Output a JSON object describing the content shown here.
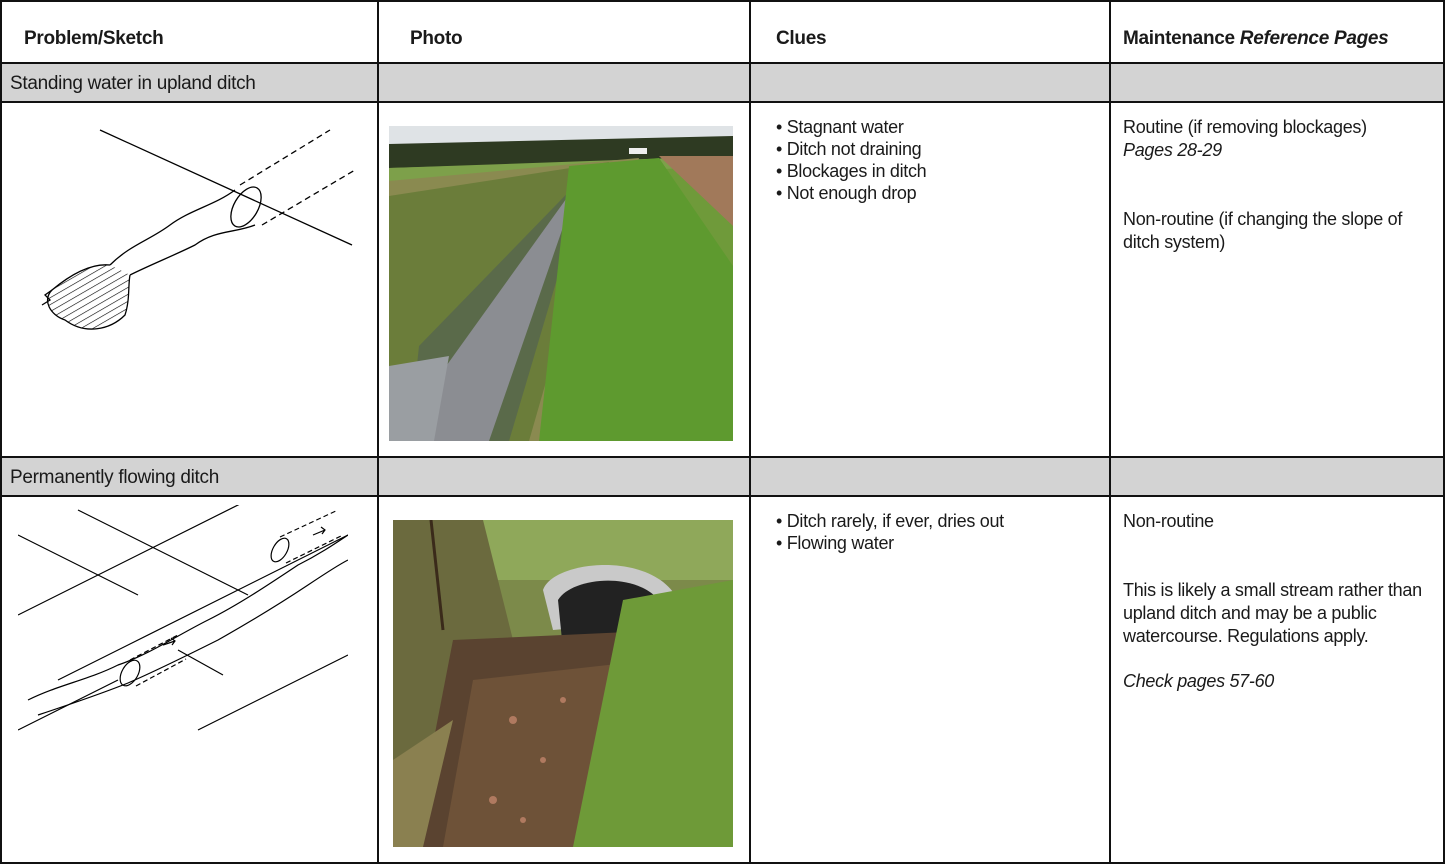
{
  "header": {
    "columns": [
      "Problem/Sketch",
      "Photo",
      "Clues"
    ],
    "maintenance": {
      "text": "Maintenance",
      "emphasis": "Reference Pages"
    }
  },
  "rows": [
    {
      "title": "Standing water in upland ditch",
      "clues": [
        "Stagnant water",
        "Ditch not draining",
        "Blockages in ditch",
        "Not enough drop"
      ],
      "maintenance": [
        {
          "text": "Routine (if removing blockages)",
          "italic": false,
          "gap_after": false
        },
        {
          "text": "Pages  28-29",
          "italic": true,
          "gap_after": true
        },
        {
          "text": "Non-routine (if changing the slope of ditch system)",
          "italic": false,
          "gap_after": false
        }
      ]
    },
    {
      "title": "Permanently flowing ditch",
      "clues": [
        "Ditch rarely, if ever, dries out",
        "Flowing water"
      ],
      "maintenance": [
        {
          "text": "Non-routine",
          "italic": false,
          "gap_after": true
        },
        {
          "text": "This is likely a small stream rather than upland ditch and may be a public watercourse. Regulations apply.",
          "italic": false,
          "gap_after": false
        },
        {
          "text": "Check pages 57-60",
          "italic": true,
          "gap_after": false
        }
      ]
    }
  ]
}
